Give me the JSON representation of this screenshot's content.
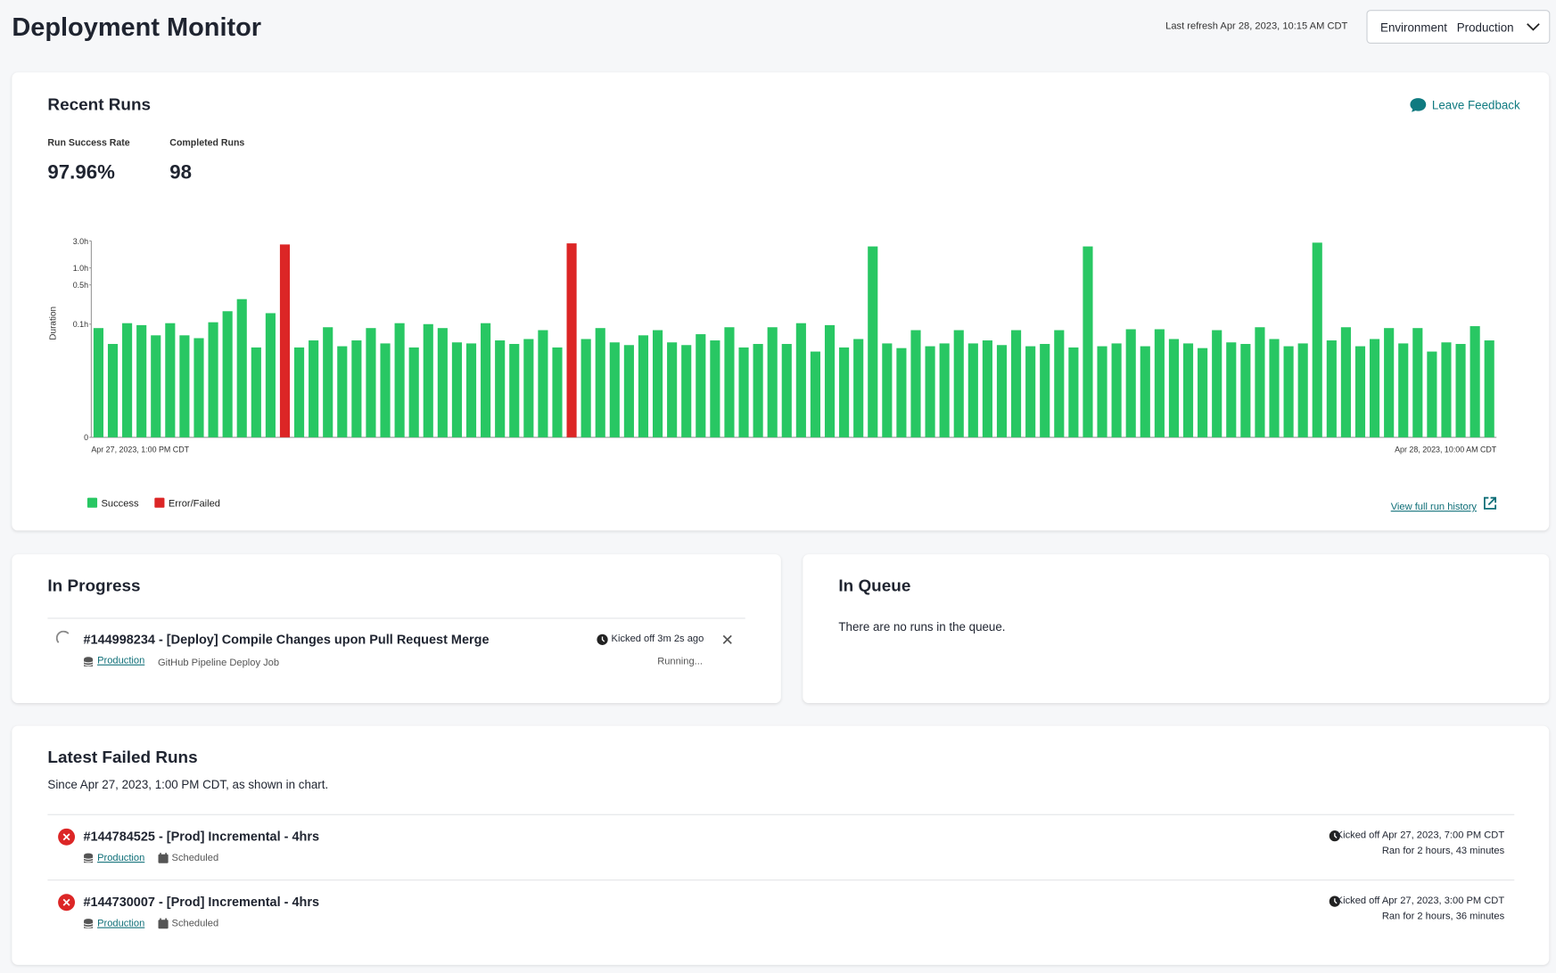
{
  "header": {
    "title": "Deployment Monitor",
    "last_refresh": "Last refresh Apr 28, 2023, 10:15 AM CDT",
    "environment_label": "Environment",
    "environment_value": "Production"
  },
  "recent_runs": {
    "title": "Recent Runs",
    "feedback": "Leave Feedback",
    "stats": [
      {
        "label": "Run Success Rate",
        "value": "97.96%"
      },
      {
        "label": "Completed Runs",
        "value": "98"
      }
    ],
    "history_link": "View full run history"
  },
  "chart_data": {
    "type": "bar",
    "y_label": "Duration",
    "yscale": "log1p",
    "categories": [
      "Apr 27, 2023, 1:00 PM CDT",
      null,
      null,
      null,
      null,
      null,
      null,
      null,
      null,
      null,
      null,
      null,
      null,
      null,
      null,
      null,
      null,
      null,
      null,
      null,
      null,
      null,
      null,
      null,
      null,
      null,
      null,
      null,
      null,
      null,
      null,
      null,
      null,
      null,
      null,
      null,
      null,
      null,
      null,
      null,
      null,
      null,
      null,
      null,
      null,
      null,
      null,
      null,
      null,
      null,
      null,
      null,
      null,
      null,
      null,
      null,
      null,
      null,
      null,
      null,
      null,
      null,
      null,
      null,
      null,
      null,
      null,
      null,
      null,
      null,
      null,
      null,
      null,
      null,
      null,
      null,
      null,
      null,
      null,
      null,
      null,
      null,
      null,
      null,
      null,
      null,
      null,
      null,
      null,
      null,
      null,
      null,
      null,
      null,
      null,
      null,
      null,
      "Apr 28, 2023, 10:00 AM CDT"
    ],
    "series": [
      {
        "name": "Success",
        "color": "#28c763",
        "values": [
          0.085,
          0.044,
          0.104,
          0.096,
          0.063,
          0.104,
          0.063,
          0.056,
          0.108,
          0.17,
          0.279,
          0.038,
          0.157,
          null,
          0.038,
          0.051,
          0.088,
          0.04,
          0.051,
          0.085,
          0.045,
          0.104,
          0.038,
          0.1,
          0.085,
          0.047,
          0.045,
          0.104,
          0.051,
          0.044,
          0.054,
          0.078,
          0.038,
          null,
          0.054,
          0.085,
          0.047,
          0.042,
          0.063,
          0.078,
          0.047,
          0.042,
          0.066,
          0.051,
          0.088,
          0.038,
          0.044,
          0.088,
          0.044,
          0.104,
          0.032,
          0.096,
          0.038,
          0.054,
          2.4,
          0.045,
          0.037,
          0.078,
          0.04,
          0.045,
          0.078,
          0.045,
          0.051,
          0.042,
          0.078,
          0.04,
          0.044,
          0.078,
          0.038,
          2.4,
          0.04,
          0.045,
          0.081,
          0.04,
          0.081,
          0.054,
          0.045,
          0.037,
          0.078,
          0.047,
          0.044,
          0.088,
          0.054,
          0.04,
          0.045,
          2.8,
          0.051,
          0.088,
          0.04,
          0.054,
          0.085,
          0.045,
          0.085,
          0.032,
          0.047,
          0.044,
          0.092,
          0.051
        ]
      },
      {
        "name": "Error/Failed",
        "color": "#dc2626",
        "values": [
          null,
          null,
          null,
          null,
          null,
          null,
          null,
          null,
          null,
          null,
          null,
          null,
          null,
          2.6,
          null,
          null,
          null,
          null,
          null,
          null,
          null,
          null,
          null,
          null,
          null,
          null,
          null,
          null,
          null,
          null,
          null,
          null,
          null,
          2.72,
          null,
          null,
          null,
          null,
          null,
          null,
          null,
          null,
          null,
          null,
          null,
          null,
          null,
          null,
          null,
          null,
          null,
          null,
          null,
          null,
          null,
          null,
          null,
          null,
          null,
          null,
          null,
          null,
          null,
          null,
          null,
          null,
          null,
          null,
          null,
          null,
          null,
          null,
          null,
          null,
          null,
          null,
          null,
          null,
          null,
          null,
          null,
          null,
          null,
          null,
          null,
          null,
          null,
          null,
          null,
          null,
          null,
          null,
          null,
          null,
          null,
          null,
          null,
          null
        ]
      }
    ],
    "ylim": [
      0,
      3
    ],
    "yticks": [
      0,
      {
        "value": 0.1,
        "label": "0.1h"
      },
      {
        "value": 0.5,
        "label": "0.5h"
      },
      {
        "value": 1,
        "label": "1.0h"
      },
      {
        "value": 3,
        "label": "3.0h"
      }
    ],
    "grid": false,
    "legend": "bottom-left"
  },
  "in_progress": {
    "title": "In Progress",
    "run": {
      "name": "#144998234 - [Deploy] Compile Changes upon Pull Request Merge",
      "environment": "Production",
      "job": "GitHub Pipeline Deploy Job",
      "kicked_off": "Kicked off 3m 2s ago",
      "status": "Running..."
    }
  },
  "in_queue": {
    "title": "In Queue",
    "message": "There are no runs in the queue."
  },
  "failed_runs": {
    "title": "Latest Failed Runs",
    "subtitle": "Since Apr 27, 2023, 1:00 PM CDT, as shown in chart.",
    "runs": [
      {
        "name": "#144784525 - [Prod] Incremental - 4hrs",
        "environment": "Production",
        "trigger": "Scheduled",
        "kicked_off": "Kicked off Apr 27, 2023, 7:00 PM CDT",
        "duration": "Ran for 2 hours, 43 minutes"
      },
      {
        "name": "#144730007 - [Prod] Incremental - 4hrs",
        "environment": "Production",
        "trigger": "Scheduled",
        "kicked_off": "Kicked off Apr 27, 2023, 3:00 PM CDT",
        "duration": "Ran for 2 hours, 36 minutes"
      }
    ]
  }
}
